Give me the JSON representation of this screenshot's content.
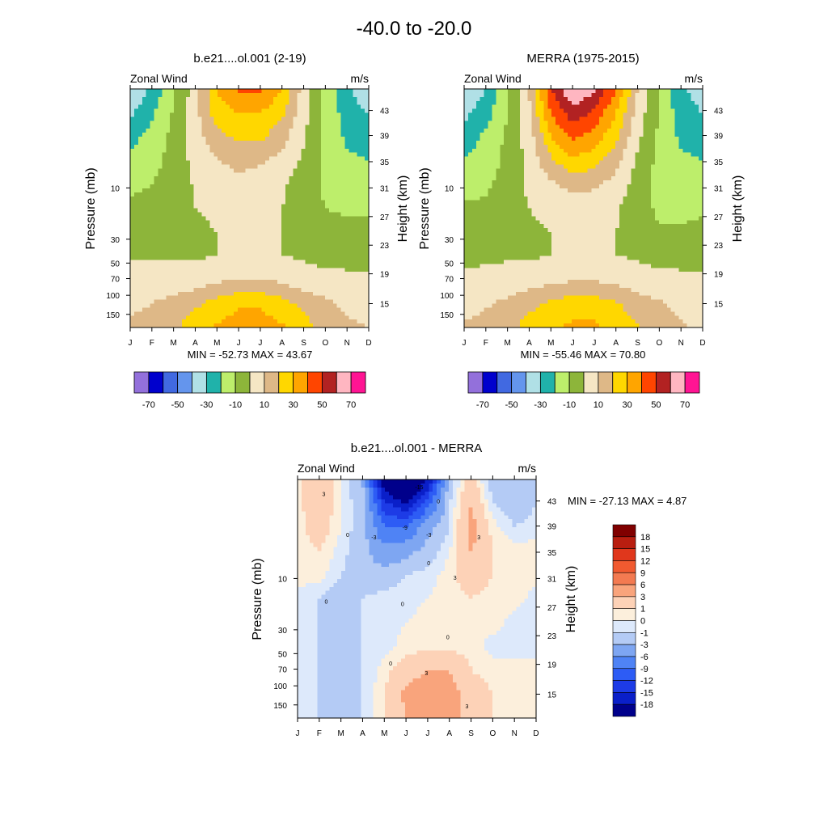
{
  "page_title": "-40.0 to -20.0",
  "panel_common": {
    "left_label": "Zonal Wind",
    "right_label": "m/s",
    "ylabel_left": "Pressure (mb)",
    "ylabel_right": "Height (km)"
  },
  "chart_data": [
    {
      "type": "heatmap",
      "title": "b.e21....ol.001 (2-19)",
      "stats": "MIN = -52.73  MAX =  43.67",
      "xlabel": "",
      "ylabel": "Pressure (mb)",
      "ylabel_right": "Height (km)",
      "x_ticks": [
        "J",
        "F",
        "M",
        "A",
        "M",
        "J",
        "J",
        "A",
        "S",
        "O",
        "N",
        "D"
      ],
      "pressure_ticks": [
        "10",
        "30",
        "50",
        "70",
        "100",
        "150"
      ],
      "height_ticks": [
        "43",
        "39",
        "35",
        "31",
        "27",
        "23",
        "19",
        "15"
      ],
      "colorbar": {
        "levels": [
          -70,
          -60,
          -50,
          -40,
          -30,
          -20,
          -10,
          0,
          10,
          20,
          30,
          40,
          50,
          60,
          70
        ],
        "tick_labels": [
          "-70",
          "-50",
          "-30",
          "-10",
          "10",
          "30",
          "50",
          "70"
        ],
        "colors": [
          "#9370db",
          "#0000cd",
          "#4169e1",
          "#6495ed",
          "#b0e0e6",
          "#20b2aa",
          "#bdee6b",
          "#8db53a",
          "#f5e6c4",
          "#deb887",
          "#ffd700",
          "#ffa500",
          "#ff4500",
          "#b22222",
          "#ffb6c1",
          "#ff1493"
        ]
      },
      "grid": [
        [
          -40,
          -28,
          -12,
          5,
          30,
          42,
          42,
          30,
          5,
          -12,
          -28,
          -38
        ],
        [
          -32,
          -22,
          -9,
          7,
          25,
          30,
          30,
          22,
          4,
          -12,
          -25,
          -30
        ],
        [
          -24,
          -16,
          -7,
          5,
          17,
          22,
          22,
          14,
          1,
          -12,
          -22,
          -24
        ],
        [
          -18,
          -14,
          -6,
          3,
          9,
          14,
          12,
          6,
          -2,
          -12,
          -18,
          -20
        ],
        [
          -12,
          -10,
          -5,
          1,
          4,
          6,
          3,
          1,
          -4,
          -12,
          -14,
          -14
        ],
        [
          -8,
          -7,
          -4,
          0,
          1,
          1,
          1,
          0,
          -4,
          -10,
          -11,
          -11
        ],
        [
          -5,
          -4,
          -3,
          -1,
          0,
          0,
          0,
          0,
          -3,
          -8,
          -8,
          -8
        ],
        [
          -1,
          -1,
          -1,
          -1,
          0,
          0,
          0,
          0,
          -1,
          -3,
          -3,
          -3
        ],
        [
          3,
          4,
          4,
          5,
          8,
          10,
          10,
          8,
          4,
          3,
          2,
          2
        ],
        [
          8,
          10,
          13,
          18,
          24,
          28,
          28,
          24,
          17,
          12,
          8,
          6
        ],
        [
          12,
          14,
          18,
          26,
          31,
          36,
          36,
          31,
          24,
          16,
          12,
          10
        ]
      ]
    },
    {
      "type": "heatmap",
      "title": "MERRA (1975-2015)",
      "stats": "MIN = -55.46  MAX =  70.80",
      "xlabel": "",
      "ylabel": "Pressure (mb)",
      "ylabel_right": "Height (km)",
      "x_ticks": [
        "J",
        "F",
        "M",
        "A",
        "M",
        "J",
        "J",
        "A",
        "S",
        "O",
        "N",
        "D"
      ],
      "pressure_ticks": [
        "10",
        "30",
        "50",
        "70",
        "100",
        "150"
      ],
      "height_ticks": [
        "43",
        "39",
        "35",
        "31",
        "27",
        "23",
        "19",
        "15"
      ],
      "colorbar": {
        "levels": [
          -70,
          -60,
          -50,
          -40,
          -30,
          -20,
          -10,
          0,
          10,
          20,
          30,
          40,
          50,
          60,
          70
        ],
        "tick_labels": [
          "-70",
          "-50",
          "-30",
          "-10",
          "10",
          "30",
          "50",
          "70"
        ],
        "colors": [
          "#9370db",
          "#0000cd",
          "#4169e1",
          "#6495ed",
          "#b0e0e6",
          "#20b2aa",
          "#bdee6b",
          "#8db53a",
          "#f5e6c4",
          "#deb887",
          "#ffd700",
          "#ffa500",
          "#ff4500",
          "#b22222",
          "#ffb6c1",
          "#ff1493"
        ]
      },
      "grid": [
        [
          -40,
          -30,
          -12,
          10,
          50,
          70,
          62,
          40,
          10,
          -10,
          -28,
          -36
        ],
        [
          -33,
          -24,
          -10,
          8,
          40,
          56,
          48,
          30,
          6,
          -11,
          -25,
          -30
        ],
        [
          -26,
          -18,
          -8,
          5,
          30,
          42,
          36,
          22,
          2,
          -12,
          -22,
          -24
        ],
        [
          -19,
          -15,
          -7,
          3,
          18,
          28,
          24,
          14,
          -2,
          -13,
          -18,
          -20
        ],
        [
          -13,
          -12,
          -6,
          2,
          8,
          14,
          12,
          6,
          -4,
          -14,
          -15,
          -14
        ],
        [
          -9,
          -8,
          -5,
          0,
          2,
          4,
          3,
          1,
          -5,
          -12,
          -12,
          -11
        ],
        [
          -6,
          -5,
          -3,
          -1,
          0,
          0,
          0,
          0,
          -3,
          -9,
          -9,
          -8
        ],
        [
          -2,
          -2,
          -1,
          -1,
          0,
          0,
          0,
          0,
          -1,
          -3,
          -3,
          -3
        ],
        [
          2,
          3,
          4,
          5,
          7,
          9,
          9,
          7,
          4,
          3,
          2,
          2
        ],
        [
          7,
          9,
          12,
          17,
          22,
          25,
          25,
          21,
          15,
          11,
          7,
          6
        ],
        [
          11,
          13,
          17,
          24,
          28,
          32,
          32,
          27,
          21,
          15,
          11,
          9
        ]
      ]
    },
    {
      "type": "heatmap",
      "title": "b.e21....ol.001 - MERRA",
      "stats": "MIN = -27.13  MAX =   4.87",
      "xlabel": "",
      "ylabel": "Pressure (mb)",
      "ylabel_right": "Height (km)",
      "x_ticks": [
        "J",
        "F",
        "M",
        "A",
        "M",
        "J",
        "J",
        "A",
        "S",
        "O",
        "N",
        "D"
      ],
      "pressure_ticks": [
        "10",
        "30",
        "50",
        "70",
        "100",
        "150"
      ],
      "height_ticks": [
        "43",
        "39",
        "35",
        "31",
        "27",
        "23",
        "19",
        "15"
      ],
      "contour_labels": [
        "3",
        "0",
        "-3",
        "-15",
        "-9",
        "-3",
        "0",
        "3",
        "3",
        "0",
        "0",
        "0",
        "0",
        "0",
        "3",
        "3"
      ],
      "colorbar": {
        "levels": [
          -18,
          -15,
          -12,
          -9,
          -6,
          -3,
          -1,
          0,
          1,
          3,
          6,
          9,
          12,
          15,
          18
        ],
        "tick_labels": [
          "18",
          "15",
          "12",
          "9",
          "6",
          "3",
          "1",
          "0",
          "-1",
          "-3",
          "-6",
          "-9",
          "-12",
          "-15",
          "-18"
        ],
        "colors": [
          "#00008b",
          "#0a1fc9",
          "#1d3be6",
          "#2d5cf5",
          "#4f83f5",
          "#7ea6f2",
          "#b4cbf5",
          "#dde9fb",
          "#fcefdc",
          "#fdd2b7",
          "#f9a47c",
          "#f37a51",
          "#f15a30",
          "#e0371c",
          "#b91e10",
          "#800000"
        ]
      },
      "grid": [
        [
          0.5,
          3,
          0,
          -3,
          -22,
          -27,
          -18,
          -2,
          2,
          -2,
          -3,
          -2
        ],
        [
          0.5,
          2.5,
          0,
          -2,
          -14,
          -18,
          -10,
          -1,
          3,
          -1,
          -2,
          -1
        ],
        [
          0.5,
          2,
          0,
          -2,
          -9,
          -9,
          -4,
          -1,
          4,
          0.5,
          -1,
          -0.5
        ],
        [
          0.5,
          1,
          -0.5,
          -2,
          -5,
          -4,
          -2,
          0,
          3,
          1,
          0.5,
          0.5
        ],
        [
          0.5,
          0.5,
          -1,
          -2,
          -2,
          -1,
          -0.5,
          0.5,
          2,
          1,
          0.5,
          0.5
        ],
        [
          -0.5,
          -1,
          -2,
          -1,
          -0.5,
          -0.5,
          0,
          0.5,
          1,
          0.5,
          0.5,
          -0.5
        ],
        [
          -1,
          -1,
          -2,
          -1,
          -0.5,
          0,
          0.5,
          0.5,
          0.5,
          0.5,
          -0.5,
          -0.5
        ],
        [
          -1,
          -1,
          -2,
          -1,
          -0.5,
          0.5,
          0.5,
          0.5,
          0.5,
          -0.5,
          -0.5,
          -0.5
        ],
        [
          -1,
          -1,
          -2,
          -1,
          0.5,
          2,
          3,
          3,
          1,
          0.5,
          0.5,
          0.5
        ],
        [
          -1,
          -1,
          -2,
          -1,
          1,
          3.5,
          4.5,
          4,
          2,
          1,
          0.5,
          0.5
        ],
        [
          -1,
          -1,
          -2,
          -1,
          1,
          3,
          4.5,
          4,
          2,
          1,
          0.5,
          0.5
        ]
      ]
    }
  ]
}
